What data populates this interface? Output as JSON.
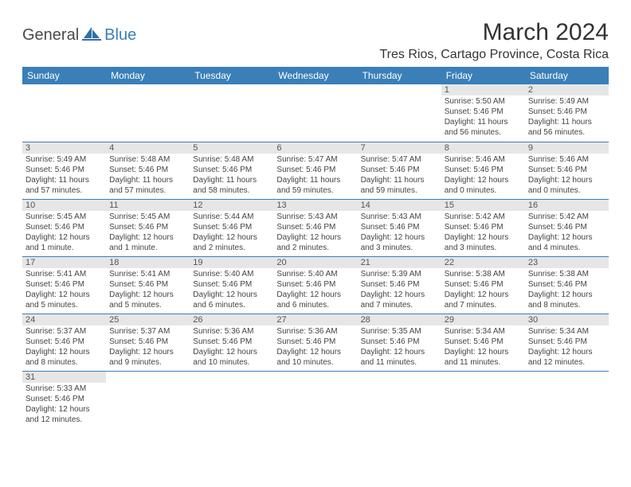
{
  "logo": {
    "text1": "General",
    "text2": "Blue"
  },
  "title": "March 2024",
  "location": "Tres Rios, Cartago Province, Costa Rica",
  "colors": {
    "header_band": "#3a7fb8",
    "header_text": "#ffffff",
    "daynum_bg": "#e6e6e6",
    "row_border": "#3a7fb8",
    "body_text": "#444444",
    "page_bg": "#ffffff"
  },
  "daysOfWeek": [
    "Sunday",
    "Monday",
    "Tuesday",
    "Wednesday",
    "Thursday",
    "Friday",
    "Saturday"
  ],
  "firstDayOffset": 5,
  "days": [
    {
      "n": 1,
      "sunrise": "5:50 AM",
      "sunset": "5:46 PM",
      "daylight": "11 hours and 56 minutes."
    },
    {
      "n": 2,
      "sunrise": "5:49 AM",
      "sunset": "5:46 PM",
      "daylight": "11 hours and 56 minutes."
    },
    {
      "n": 3,
      "sunrise": "5:49 AM",
      "sunset": "5:46 PM",
      "daylight": "11 hours and 57 minutes."
    },
    {
      "n": 4,
      "sunrise": "5:48 AM",
      "sunset": "5:46 PM",
      "daylight": "11 hours and 57 minutes."
    },
    {
      "n": 5,
      "sunrise": "5:48 AM",
      "sunset": "5:46 PM",
      "daylight": "11 hours and 58 minutes."
    },
    {
      "n": 6,
      "sunrise": "5:47 AM",
      "sunset": "5:46 PM",
      "daylight": "11 hours and 59 minutes."
    },
    {
      "n": 7,
      "sunrise": "5:47 AM",
      "sunset": "5:46 PM",
      "daylight": "11 hours and 59 minutes."
    },
    {
      "n": 8,
      "sunrise": "5:46 AM",
      "sunset": "5:46 PM",
      "daylight": "12 hours and 0 minutes."
    },
    {
      "n": 9,
      "sunrise": "5:46 AM",
      "sunset": "5:46 PM",
      "daylight": "12 hours and 0 minutes."
    },
    {
      "n": 10,
      "sunrise": "5:45 AM",
      "sunset": "5:46 PM",
      "daylight": "12 hours and 1 minute."
    },
    {
      "n": 11,
      "sunrise": "5:45 AM",
      "sunset": "5:46 PM",
      "daylight": "12 hours and 1 minute."
    },
    {
      "n": 12,
      "sunrise": "5:44 AM",
      "sunset": "5:46 PM",
      "daylight": "12 hours and 2 minutes."
    },
    {
      "n": 13,
      "sunrise": "5:43 AM",
      "sunset": "5:46 PM",
      "daylight": "12 hours and 2 minutes."
    },
    {
      "n": 14,
      "sunrise": "5:43 AM",
      "sunset": "5:46 PM",
      "daylight": "12 hours and 3 minutes."
    },
    {
      "n": 15,
      "sunrise": "5:42 AM",
      "sunset": "5:46 PM",
      "daylight": "12 hours and 3 minutes."
    },
    {
      "n": 16,
      "sunrise": "5:42 AM",
      "sunset": "5:46 PM",
      "daylight": "12 hours and 4 minutes."
    },
    {
      "n": 17,
      "sunrise": "5:41 AM",
      "sunset": "5:46 PM",
      "daylight": "12 hours and 5 minutes."
    },
    {
      "n": 18,
      "sunrise": "5:41 AM",
      "sunset": "5:46 PM",
      "daylight": "12 hours and 5 minutes."
    },
    {
      "n": 19,
      "sunrise": "5:40 AM",
      "sunset": "5:46 PM",
      "daylight": "12 hours and 6 minutes."
    },
    {
      "n": 20,
      "sunrise": "5:40 AM",
      "sunset": "5:46 PM",
      "daylight": "12 hours and 6 minutes."
    },
    {
      "n": 21,
      "sunrise": "5:39 AM",
      "sunset": "5:46 PM",
      "daylight": "12 hours and 7 minutes."
    },
    {
      "n": 22,
      "sunrise": "5:38 AM",
      "sunset": "5:46 PM",
      "daylight": "12 hours and 7 minutes."
    },
    {
      "n": 23,
      "sunrise": "5:38 AM",
      "sunset": "5:46 PM",
      "daylight": "12 hours and 8 minutes."
    },
    {
      "n": 24,
      "sunrise": "5:37 AM",
      "sunset": "5:46 PM",
      "daylight": "12 hours and 8 minutes."
    },
    {
      "n": 25,
      "sunrise": "5:37 AM",
      "sunset": "5:46 PM",
      "daylight": "12 hours and 9 minutes."
    },
    {
      "n": 26,
      "sunrise": "5:36 AM",
      "sunset": "5:46 PM",
      "daylight": "12 hours and 10 minutes."
    },
    {
      "n": 27,
      "sunrise": "5:36 AM",
      "sunset": "5:46 PM",
      "daylight": "12 hours and 10 minutes."
    },
    {
      "n": 28,
      "sunrise": "5:35 AM",
      "sunset": "5:46 PM",
      "daylight": "12 hours and 11 minutes."
    },
    {
      "n": 29,
      "sunrise": "5:34 AM",
      "sunset": "5:46 PM",
      "daylight": "12 hours and 11 minutes."
    },
    {
      "n": 30,
      "sunrise": "5:34 AM",
      "sunset": "5:46 PM",
      "daylight": "12 hours and 12 minutes."
    },
    {
      "n": 31,
      "sunrise": "5:33 AM",
      "sunset": "5:46 PM",
      "daylight": "12 hours and 12 minutes."
    }
  ],
  "labels": {
    "sunrise": "Sunrise:",
    "sunset": "Sunset:",
    "daylight": "Daylight:"
  }
}
